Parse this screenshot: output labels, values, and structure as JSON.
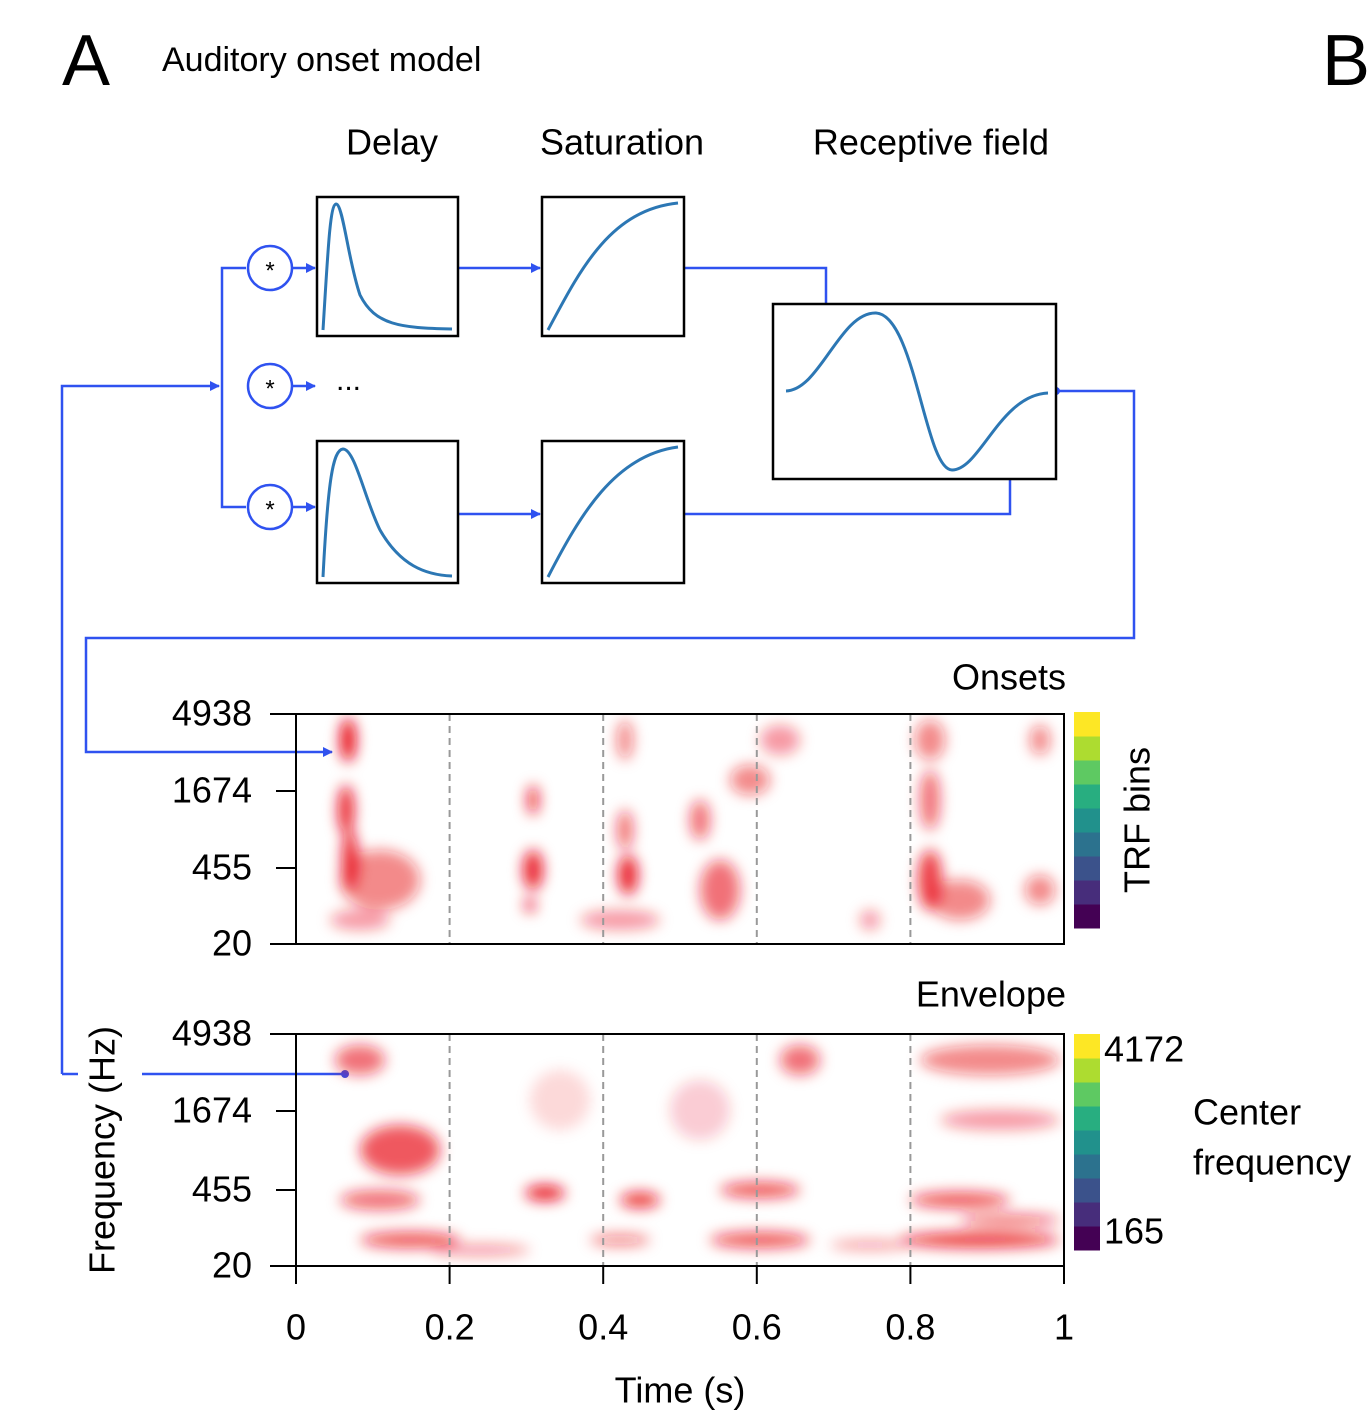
{
  "panel_a": {
    "label": "A",
    "title": "Auditory onset model",
    "stages": [
      "Delay",
      "Saturation",
      "Receptive field"
    ],
    "operators": [
      "*",
      "*",
      "*"
    ],
    "ellipsis": "...",
    "onsets": {
      "title": "Onsets",
      "yticks": [
        4938,
        1674,
        455,
        20
      ],
      "colorbar_label": "TRF bins"
    },
    "envelope": {
      "title": "Envelope",
      "yticks": [
        4938,
        1674,
        455,
        20
      ],
      "colorbar_ticks": [
        4172,
        165
      ],
      "colorbar_label": [
        "Center",
        "frequency"
      ]
    },
    "ylabel": "Frequency (Hz)",
    "xlabel": "Time (s)",
    "xticks": [
      0,
      0.2,
      0.4,
      0.6,
      0.8,
      1
    ]
  },
  "panel_b": {
    "label": "B"
  }
}
